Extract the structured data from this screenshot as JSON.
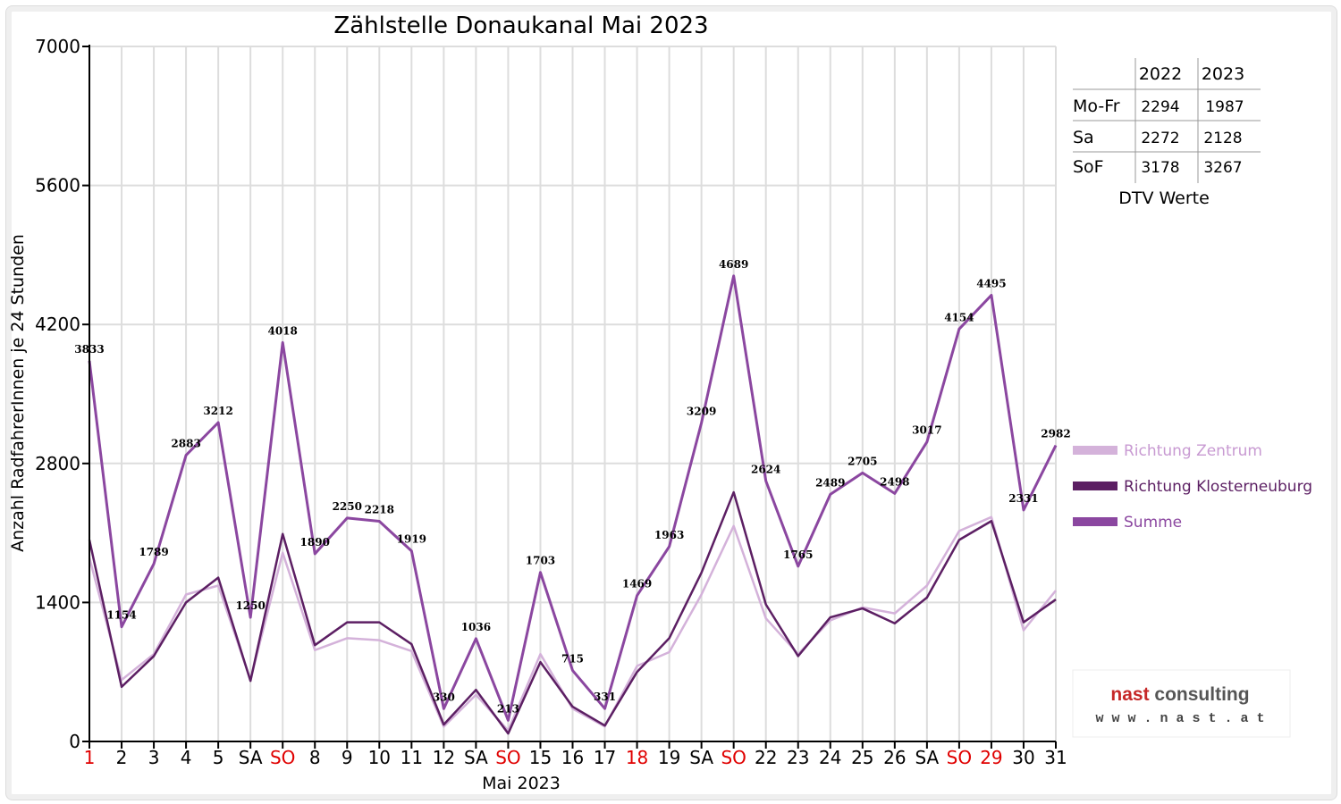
{
  "chart_data": {
    "type": "line",
    "title": "Zählstelle Donaukanal Mai 2023",
    "xlabel": "Mai 2023",
    "ylabel": "Anzahl RadfahrerInnen je 24 Stunden",
    "ylim": [
      0,
      7000
    ],
    "yticks": [
      "0",
      "1400",
      "2800",
      "4200",
      "5600",
      "7000"
    ],
    "grid": true,
    "legend_position": "right",
    "categories": [
      "1",
      "2",
      "3",
      "4",
      "5",
      "SA",
      "SO",
      "8",
      "9",
      "10",
      "11",
      "12",
      "SA",
      "SO",
      "15",
      "16",
      "17",
      "18",
      "19",
      "SA",
      "SO",
      "22",
      "23",
      "24",
      "25",
      "26",
      "SA",
      "SO",
      "29",
      "30",
      "31"
    ],
    "category_colors": [
      "#e00000",
      "#000000",
      "#000000",
      "#000000",
      "#000000",
      "#000000",
      "#e00000",
      "#000000",
      "#000000",
      "#000000",
      "#000000",
      "#000000",
      "#000000",
      "#e00000",
      "#000000",
      "#000000",
      "#000000",
      "#e00000",
      "#000000",
      "#000000",
      "#e00000",
      "#000000",
      "#000000",
      "#000000",
      "#000000",
      "#000000",
      "#000000",
      "#e00000",
      "#e00000",
      "#000000",
      "#000000"
    ],
    "series": [
      {
        "name": "Richtung Zentrum",
        "color": "#d4b2da",
        "values": [
          1850,
          620,
          880,
          1480,
          1570,
          620,
          1900,
          920,
          1040,
          1020,
          910,
          150,
          470,
          110,
          880,
          330,
          150,
          760,
          900,
          1480,
          2170,
          1240,
          880,
          1220,
          1350,
          1290,
          1570,
          2120,
          2260,
          1120,
          1520
        ]
      },
      {
        "name": "Richtung Klosterneuburg",
        "color": "#5c1f63",
        "values": [
          2030,
          550,
          860,
          1400,
          1650,
          610,
          2090,
          970,
          1200,
          1200,
          980,
          170,
          520,
          80,
          800,
          350,
          160,
          700,
          1040,
          1700,
          2510,
          1380,
          860,
          1250,
          1340,
          1190,
          1450,
          2030,
          2220,
          1200,
          1430
        ]
      },
      {
        "name": "Summe",
        "color": "#8b47a0",
        "values": [
          3833,
          1154,
          1789,
          2883,
          3212,
          1250,
          4018,
          1890,
          2250,
          2218,
          1919,
          330,
          1036,
          213,
          1703,
          715,
          331,
          1469,
          1963,
          3209,
          4689,
          2624,
          1765,
          2489,
          2705,
          2498,
          3017,
          4154,
          4495,
          2331,
          2982
        ]
      }
    ],
    "data_labels": [
      "3833",
      "1154",
      "1789",
      "2883",
      "3212",
      "1250",
      "4018",
      "1890",
      "2250",
      "2218",
      "1919",
      "330",
      "1036",
      "213",
      "1703",
      "715",
      "331",
      "1469",
      "1963",
      "3209",
      "4689",
      "2624",
      "1765",
      "2489",
      "2705",
      "2498",
      "3017",
      "4154",
      "4495",
      "2331",
      "2982"
    ]
  },
  "dtv_table": {
    "headers": [
      "",
      "2022",
      "2023"
    ],
    "rows": [
      {
        "label": "Mo-Fr",
        "v2022": "2294",
        "v2023": "1987"
      },
      {
        "label": "Sa",
        "v2022": "2272",
        "v2023": "2128"
      },
      {
        "label": "SoF",
        "v2022": "3178",
        "v2023": "3267"
      }
    ],
    "caption": "DTV Werte"
  },
  "logo": {
    "line1": "nast consulting",
    "line2": "w w w . n a s t . a t"
  }
}
